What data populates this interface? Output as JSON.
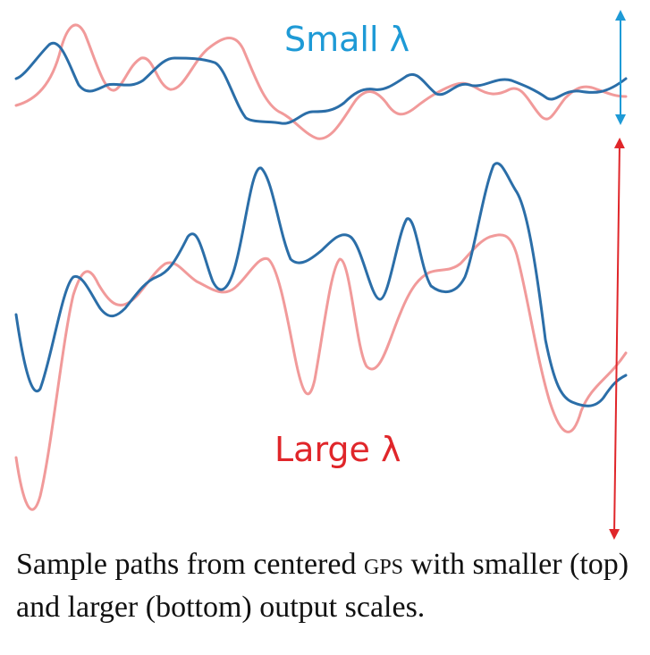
{
  "labels": {
    "small": "Small λ",
    "large": "Large λ"
  },
  "colors": {
    "small_accent": "#1e9ad6",
    "large_accent": "#e0262a",
    "curve_blue": "#2b6ea8",
    "curve_pink": "#f19a9a"
  },
  "caption": {
    "part1": "Sample paths from centered ",
    "gp": "gps",
    "part2": " with smaller (top) and larger (bottom) output scales."
  }
}
